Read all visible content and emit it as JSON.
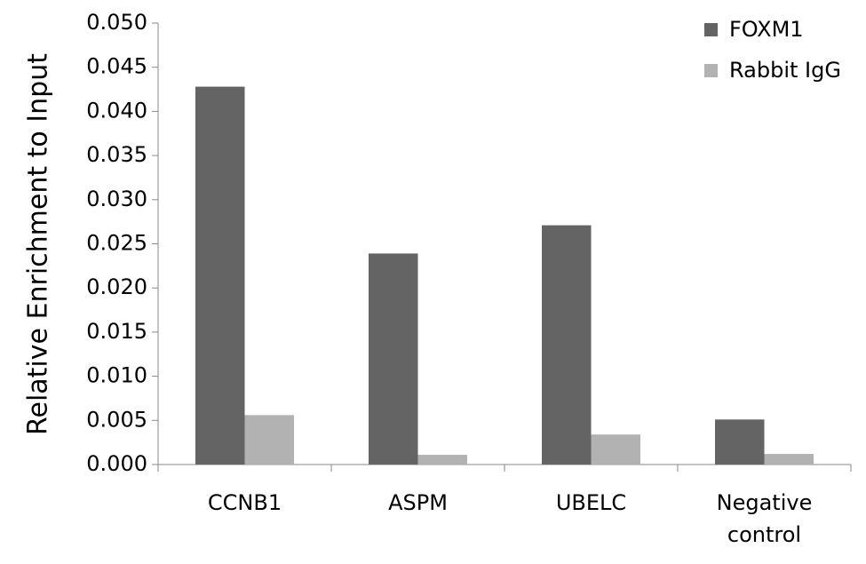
{
  "chart_data": {
    "type": "bar",
    "y_label": "Relative Enrichment to Input",
    "categories": [
      "CCNB1",
      "ASPM",
      "UBELC",
      "Negative control"
    ],
    "series": [
      {
        "name": "FOXM1",
        "color": "#646464",
        "values": [
          0.0428,
          0.0239,
          0.0271,
          0.0051
        ]
      },
      {
        "name": "Rabbit IgG",
        "color": "#b2b2b2",
        "values": [
          0.0056,
          0.0011,
          0.0034,
          0.0012
        ]
      }
    ],
    "ylim": [
      0,
      0.05
    ],
    "yticks": [
      {
        "value": 0,
        "label": "0.000"
      },
      {
        "value": 0.005,
        "label": "0.005"
      },
      {
        "value": 0.01,
        "label": "0.010"
      },
      {
        "value": 0.015,
        "label": "0.015"
      },
      {
        "value": 0.02,
        "label": "0.020"
      },
      {
        "value": 0.025,
        "label": "0.025"
      },
      {
        "value": 0.03,
        "label": "0.030"
      },
      {
        "value": 0.035,
        "label": "0.035"
      },
      {
        "value": 0.04,
        "label": "0.040"
      },
      {
        "value": 0.045,
        "label": "0.045"
      },
      {
        "value": 0.05,
        "label": "0.050"
      }
    ],
    "grid": false,
    "legend": "top-right"
  }
}
